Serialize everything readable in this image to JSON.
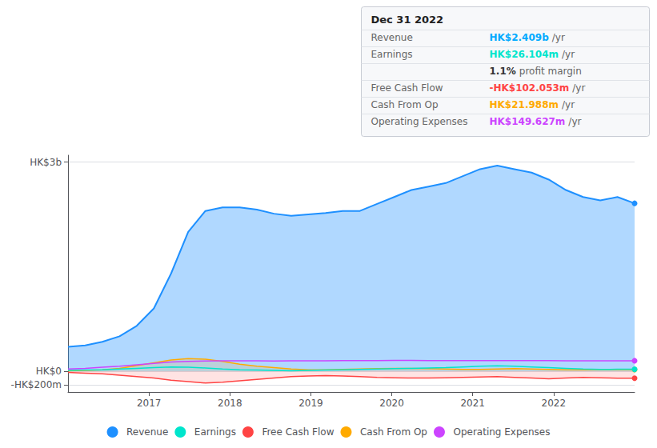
{
  "chart_data": {
    "type": "line",
    "title": "Dec 31 2022",
    "annotations": [
      {
        "label": "Revenue",
        "value": "HK$2.409b",
        "unit": "/yr",
        "color": "#00aaff"
      },
      {
        "label": "Earnings",
        "value": "HK$26.104m",
        "unit": "/yr",
        "color": "#00e5cc"
      },
      {
        "value": "1.1%",
        "unit": "profit margin"
      },
      {
        "label": "Free Cash Flow",
        "value": "-HK$102.053m",
        "unit": "/yr",
        "color": "#ff4444"
      },
      {
        "label": "Cash From Op",
        "value": "HK$21.988m",
        "unit": "/yr",
        "color": "#ffaa00"
      },
      {
        "label": "Operating Expenses",
        "value": "HK$149.627m",
        "unit": "/yr",
        "color": "#cc44ff"
      }
    ],
    "x": [
      2016,
      2016.212121,
      2016.424242,
      2016.636364,
      2016.848485,
      2017.060606,
      2017.272727,
      2017.484848,
      2017.69697,
      2017.909091,
      2018.121212,
      2018.333333,
      2018.545455,
      2018.757576,
      2018.969697,
      2019.181818,
      2019.393939,
      2019.606061,
      2019.818182,
      2020.030303,
      2020.242424,
      2020.454545,
      2020.666667,
      2020.878788,
      2021.090909,
      2021.30303,
      2021.515152,
      2021.727273,
      2021.939394,
      2022.151515,
      2022.363636,
      2022.575758,
      2022.787879,
      2023
    ],
    "series": [
      {
        "name": "Revenue",
        "type": "area",
        "color": "#1e90ff",
        "values": [
          350,
          370,
          420,
          500,
          650,
          900,
          1400,
          2000,
          2300,
          2350,
          2350,
          2320,
          2260,
          2230,
          2250,
          2270,
          2300,
          2300,
          2400,
          2500,
          2600,
          2650,
          2700,
          2800,
          2900,
          2950,
          2900,
          2850,
          2750,
          2600,
          2500,
          2450,
          2500,
          2409
        ]
      },
      {
        "name": "Earnings",
        "type": "line",
        "color": "#00e5cc",
        "values": [
          10,
          15,
          20,
          30,
          40,
          50,
          60,
          55,
          45,
          30,
          20,
          15,
          10,
          5,
          10,
          15,
          20,
          25,
          30,
          35,
          40,
          45,
          50,
          60,
          70,
          75,
          70,
          60,
          50,
          40,
          30,
          25,
          26,
          26
        ]
      },
      {
        "name": "Free Cash Flow",
        "type": "area",
        "color": "#ff4444",
        "values": [
          -20,
          -30,
          -40,
          -60,
          -80,
          -100,
          -130,
          -150,
          -170,
          -160,
          -140,
          -120,
          -100,
          -80,
          -70,
          -65,
          -70,
          -80,
          -90,
          -95,
          -100,
          -100,
          -95,
          -90,
          -85,
          -80,
          -90,
          -100,
          -110,
          -100,
          -90,
          -95,
          -102,
          -102
        ]
      },
      {
        "name": "Cash From Op",
        "type": "area",
        "color": "#ffaa00",
        "values": [
          5,
          10,
          20,
          40,
          80,
          120,
          160,
          180,
          170,
          140,
          100,
          70,
          50,
          30,
          20,
          20,
          25,
          30,
          35,
          40,
          40,
          35,
          30,
          25,
          25,
          30,
          35,
          30,
          25,
          20,
          20,
          21,
          22,
          22
        ]
      },
      {
        "name": "Operating Expenses",
        "type": "line",
        "color": "#cc44ff",
        "values": [
          30,
          40,
          55,
          70,
          90,
          110,
          130,
          140,
          145,
          148,
          148,
          147,
          146,
          147,
          148,
          149,
          150,
          151,
          152,
          153,
          153,
          152,
          151,
          150,
          150,
          151,
          152,
          151,
          150,
          149,
          149,
          149,
          149,
          149
        ]
      }
    ],
    "xlim": [
      2016,
      2023
    ],
    "xticks": [
      2017,
      2018,
      2019,
      2020,
      2021,
      2022
    ],
    "ylim": [
      -300,
      3100
    ],
    "yticks": [
      {
        "value": -200,
        "label": "-HK$200m"
      },
      {
        "value": 0,
        "label": "HK$0"
      },
      {
        "value": 3000,
        "label": "HK$3b"
      }
    ],
    "grid": true
  }
}
